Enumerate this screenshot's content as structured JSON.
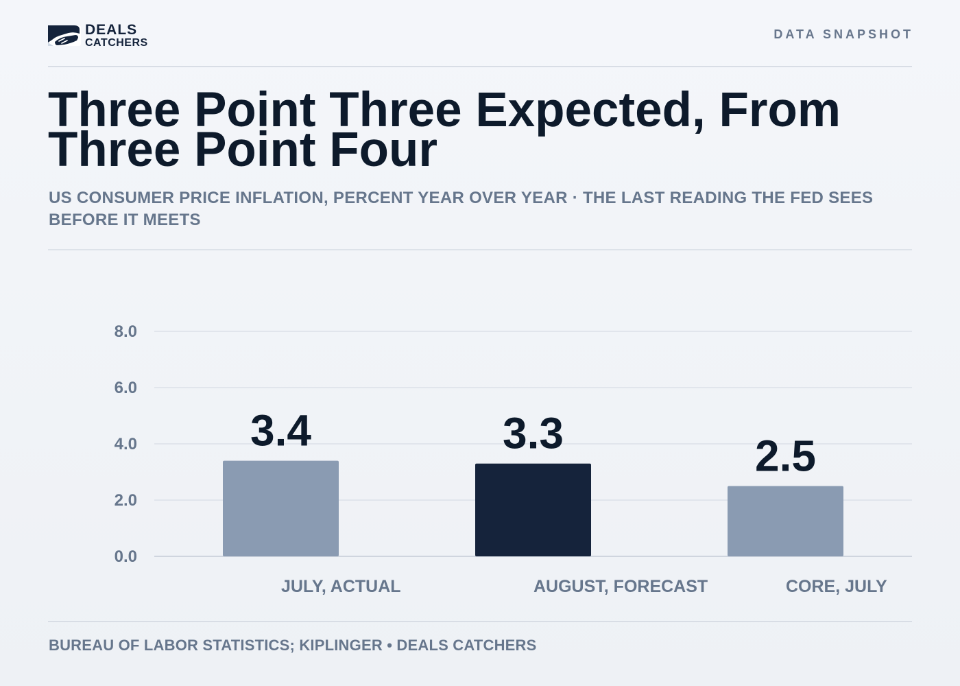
{
  "brand": {
    "line1": "DEALS",
    "line2": "CATCHERS"
  },
  "header": {
    "kicker": "DATA SNAPSHOT"
  },
  "title": "Three Point Three Expected, From Three Point Four",
  "subtitle": "US CONSUMER PRICE INFLATION, PERCENT YEAR OVER YEAR · THE LAST READING THE FED SEES BEFORE IT MEETS",
  "footer": {
    "source": "BUREAU OF LABOR STATISTICS; KIPLINGER • DEALS CATCHERS"
  },
  "colors": {
    "bar_default": "#8a9bb2",
    "bar_highlight": "#15233b",
    "value_label": "#0d1a2b",
    "axis_text": "#66768c",
    "grid": "#e1e5ec",
    "baseline": "#cfd5de"
  },
  "chart_data": {
    "type": "bar",
    "categories": [
      "JULY, ACTUAL",
      "AUGUST, FORECAST",
      "CORE, JULY"
    ],
    "values": [
      3.4,
      3.3,
      2.5
    ],
    "value_labels": [
      "3.4",
      "3.3",
      "2.5"
    ],
    "highlight_index": 1,
    "ylim": [
      0,
      8
    ],
    "yticks": [
      0,
      2,
      4,
      6,
      8
    ],
    "ytick_labels": [
      "0.0",
      "2.0",
      "4.0",
      "6.0",
      "8.0"
    ],
    "grid": true,
    "legend": "none"
  }
}
